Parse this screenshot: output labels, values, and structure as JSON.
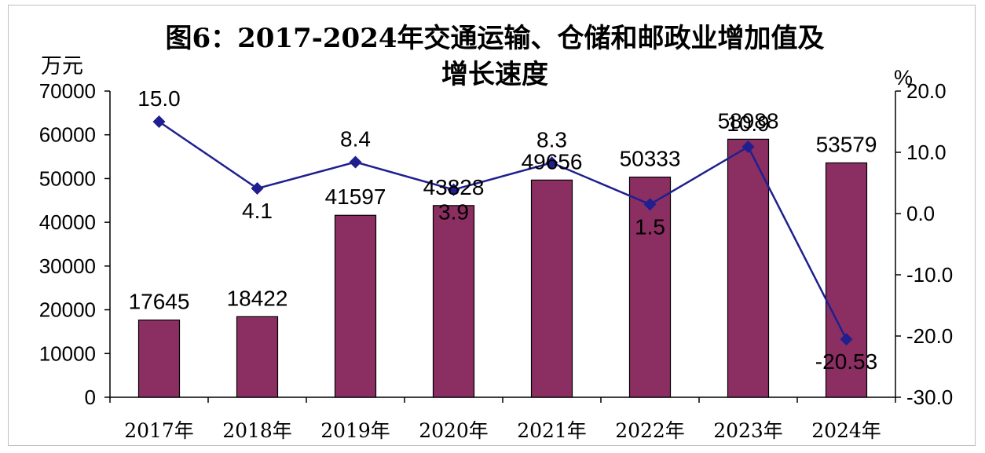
{
  "chart_data": {
    "type": "bar",
    "title": "图6：2017-2024年交通运输、仓储和邮政业增加值及增长速度",
    "title_lines": [
      "图6：2017-2024年交通运输、仓储和邮政业增加值及",
      "增长速度"
    ],
    "categories": [
      "2017年",
      "2018年",
      "2019年",
      "2020年",
      "2021年",
      "2022年",
      "2023年",
      "2024年"
    ],
    "series": [
      {
        "type": "bar",
        "axis": "left",
        "values": [
          17645,
          18422,
          41597,
          43828,
          49656,
          50333,
          58988,
          53579
        ],
        "labels": [
          "17645",
          "18422",
          "41597",
          "43828",
          "49656",
          "50333",
          "58988",
          "53579"
        ],
        "color": "#8b2e62"
      },
      {
        "type": "line",
        "axis": "right",
        "values": [
          15.0,
          4.1,
          8.4,
          3.9,
          8.3,
          1.5,
          10.9,
          -20.53
        ],
        "labels": [
          "15.0",
          "4.1",
          "8.4",
          "3.9",
          "8.3",
          "1.5",
          "10.9",
          "-20.53"
        ],
        "color": "#1f1f8f"
      }
    ],
    "y_left": {
      "unit": "万元",
      "ylim": [
        0,
        70000
      ],
      "ticks": [
        0,
        10000,
        20000,
        30000,
        40000,
        50000,
        60000,
        70000
      ],
      "tick_labels": [
        "0",
        "10000",
        "20000",
        "30000",
        "40000",
        "50000",
        "60000",
        "70000"
      ]
    },
    "y_right": {
      "unit": "%",
      "ylim": [
        -30,
        20
      ],
      "ticks": [
        20,
        10,
        0,
        -10,
        -20,
        -30
      ],
      "tick_labels": [
        "20.0",
        "10.0",
        "0.0",
        "-10.0",
        "-20.0",
        "-30.0"
      ]
    },
    "grid": false,
    "legend": "none"
  }
}
